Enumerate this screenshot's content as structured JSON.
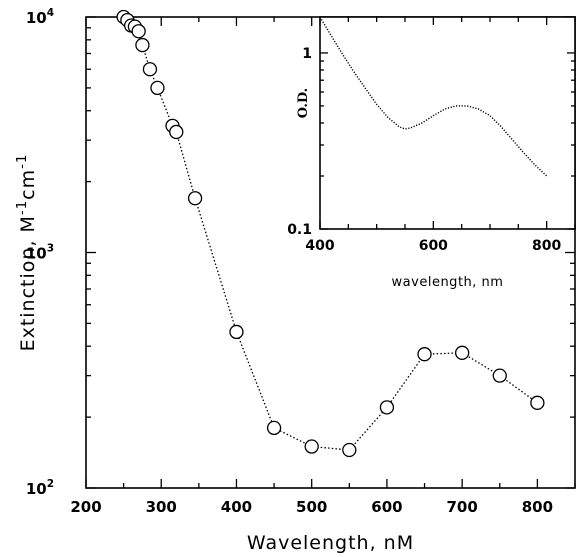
{
  "chart_data": [
    {
      "type": "scatter",
      "xlabel": "Wavelength, nM",
      "ylabel_main": "Extinction, M",
      "ylabel_exp1": "-1",
      "ylabel_mid": "cm",
      "ylabel_exp2": "-1",
      "xlim": [
        200,
        850
      ],
      "ylim": [
        100,
        10000
      ],
      "yscale": "log",
      "xticks": [
        200,
        300,
        400,
        500,
        600,
        700,
        800
      ],
      "yticks": [
        {
          "value": 100,
          "base": "10",
          "exp": "2"
        },
        {
          "value": 1000,
          "base": "10",
          "exp": "3"
        },
        {
          "value": 10000,
          "base": "10",
          "exp": "4"
        }
      ],
      "series": [
        {
          "x": [
            250,
            255,
            260,
            265,
            270,
            275,
            285,
            295,
            315,
            320,
            345,
            400,
            450,
            500,
            550,
            600,
            650,
            700,
            750,
            800
          ],
          "y": [
            10000,
            9700,
            9200,
            9100,
            8700,
            7600,
            6000,
            5000,
            3450,
            3250,
            1700,
            460,
            180,
            150,
            145,
            220,
            370,
            375,
            300,
            230
          ]
        }
      ]
    },
    {
      "type": "line",
      "xlabel": "wavelength, nm",
      "ylabel": "O.D.",
      "xlim": [
        400,
        850
      ],
      "ylim": [
        0.1,
        1.6
      ],
      "yscale": "log",
      "xticks": [
        400,
        600,
        800
      ],
      "yticks": [
        0.1,
        1
      ],
      "series": [
        {
          "x": [
            400,
            420,
            440,
            460,
            480,
            500,
            520,
            540,
            550,
            560,
            580,
            600,
            620,
            640,
            660,
            680,
            700,
            720,
            740,
            760,
            780,
            800
          ],
          "y": [
            1.6,
            1.25,
            0.98,
            0.78,
            0.63,
            0.51,
            0.43,
            0.38,
            0.37,
            0.375,
            0.4,
            0.44,
            0.48,
            0.5,
            0.5,
            0.48,
            0.44,
            0.38,
            0.32,
            0.27,
            0.23,
            0.2
          ]
        }
      ]
    }
  ]
}
